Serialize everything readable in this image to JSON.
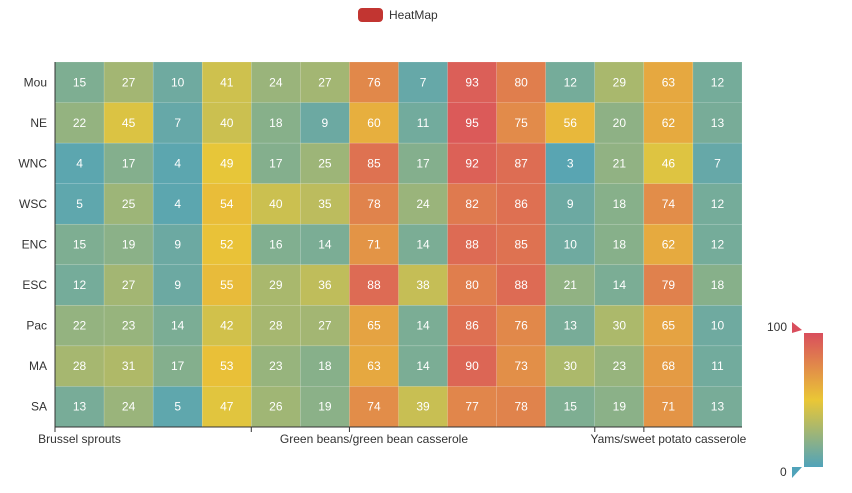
{
  "legend": {
    "label": "HeatMap",
    "color": "#c23531"
  },
  "visual_map": {
    "max_label": "100",
    "min_label": "0",
    "colors": [
      "#50a3ba",
      "#eac736",
      "#d94e5d"
    ]
  },
  "chart_data": {
    "type": "heatmap",
    "y_categories": [
      "Mou",
      "NE",
      "WNC",
      "WSC",
      "ENC",
      "ESC",
      "Pac",
      "MA",
      "SA"
    ],
    "x_labels_shown": [
      "Brussel sprouts",
      "Green beans/green bean casserole",
      "Yams/sweet potato casserole"
    ],
    "columns": 14,
    "values": [
      [
        15,
        27,
        10,
        41,
        24,
        27,
        76,
        7,
        93,
        80,
        12,
        29,
        63,
        12
      ],
      [
        22,
        45,
        7,
        40,
        18,
        9,
        60,
        11,
        95,
        75,
        56,
        20,
        62,
        13
      ],
      [
        4,
        17,
        4,
        49,
        17,
        25,
        85,
        17,
        92,
        87,
        3,
        21,
        46,
        7
      ],
      [
        5,
        25,
        4,
        54,
        40,
        35,
        78,
        24,
        82,
        86,
        9,
        18,
        74,
        12
      ],
      [
        15,
        19,
        9,
        52,
        16,
        14,
        71,
        14,
        88,
        85,
        10,
        18,
        62,
        12
      ],
      [
        12,
        27,
        9,
        55,
        29,
        36,
        88,
        38,
        80,
        88,
        21,
        14,
        79,
        18
      ],
      [
        22,
        23,
        14,
        42,
        28,
        27,
        65,
        14,
        86,
        76,
        13,
        30,
        65,
        10
      ],
      [
        28,
        31,
        17,
        53,
        23,
        18,
        63,
        14,
        90,
        73,
        30,
        23,
        68,
        11
      ],
      [
        13,
        24,
        5,
        47,
        26,
        19,
        74,
        39,
        77,
        78,
        15,
        19,
        71,
        13
      ]
    ],
    "value_range": [
      0,
      100
    ]
  }
}
